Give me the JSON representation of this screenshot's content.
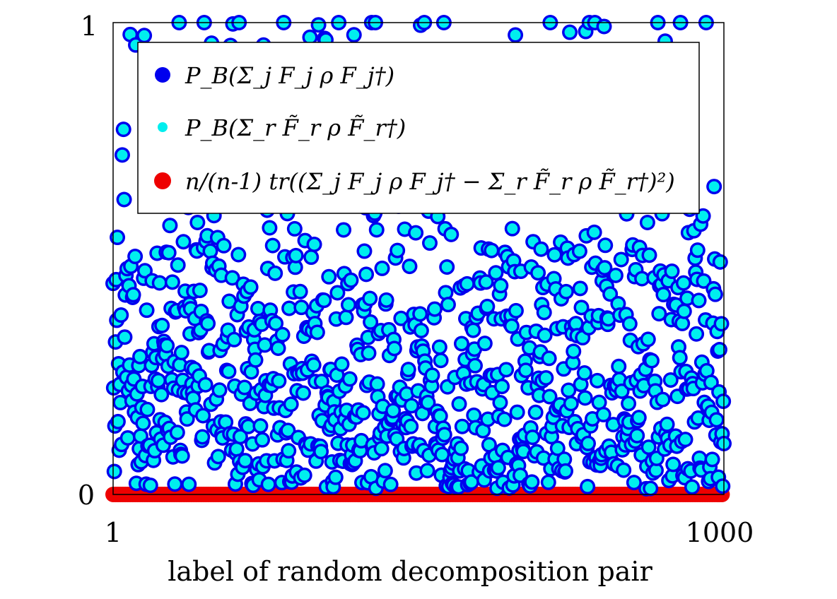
{
  "chart_data": {
    "type": "scatter",
    "title": "",
    "xlabel": "label of random decomposition pair",
    "ylabel": "",
    "xlim": [
      1,
      1000
    ],
    "ylim": [
      0,
      1
    ],
    "x_ticks": [
      "1",
      "1000"
    ],
    "y_ticks": [
      "0",
      "1"
    ],
    "grid": false,
    "legend": "top-left",
    "n_points": 1000,
    "series": [
      {
        "name": "P_B(Σ_j F_j ρ F_j†)",
        "marker_color": "#0000ee",
        "marker": "large-circle",
        "distribution": "values spread over 0 to 1, most between 0 and 0.6",
        "y_sample": [
          0.58,
          0.35,
          0.22,
          0.12,
          0.95,
          0.04,
          0.42,
          0.61,
          0.18,
          0.27,
          0.08,
          0.71,
          0.33,
          0.15,
          0.49,
          0.06,
          0.24,
          0.39,
          0.11,
          0.55,
          0.29,
          0.02,
          0.19,
          0.44,
          0.13,
          0.66,
          0.31,
          0.09,
          0.37,
          0.21
        ]
      },
      {
        "name": "P_B(Σ_r F̃_r ρ F̃_r†)",
        "marker_color": "#00eeee",
        "marker": "small-circle",
        "distribution": "coincides with the blue series",
        "y_sample": [
          0.58,
          0.35,
          0.22,
          0.12,
          0.95,
          0.04,
          0.42,
          0.61,
          0.18,
          0.27,
          0.08,
          0.71,
          0.33,
          0.15,
          0.49,
          0.06,
          0.24,
          0.39,
          0.11,
          0.55,
          0.29,
          0.02,
          0.19,
          0.44,
          0.13,
          0.66,
          0.31,
          0.09,
          0.37,
          0.21
        ]
      },
      {
        "name": "n/(n-1) tr((Σ_j F_j ρ F_j† − Σ_r F̃_r ρ F̃_r†)²)",
        "marker_color": "#ee0000",
        "marker": "large-circle",
        "distribution": "all values 0",
        "y_value": 0
      }
    ]
  }
}
